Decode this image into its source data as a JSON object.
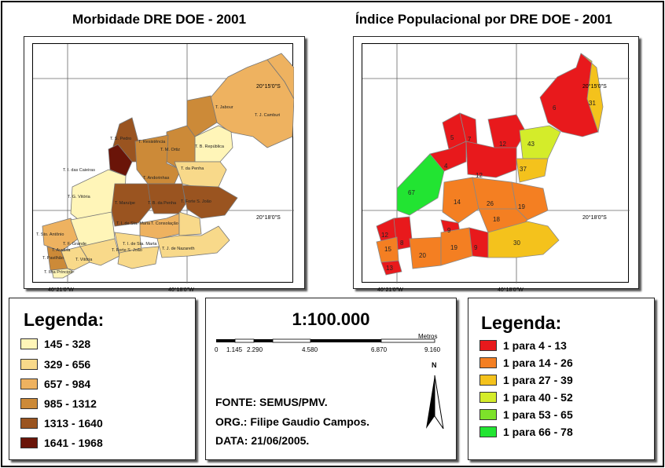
{
  "left_map": {
    "title": "Morbidade DRE DOE - 2001",
    "coord_lat_label": "20°15'0\"S",
    "coord_lat_label2": "20°18'0\"S",
    "coord_lon_label": "40°21'0\"W",
    "coord_lon_label2": "40°18'0\"W",
    "region_labels": [
      "T. Jabour",
      "T. J. Camburi",
      "T. S. Pedro",
      "T. Resistência",
      "T. M. Ortiz",
      "T. B. República",
      "T. I. das Caieiras",
      "T. Andorinhas",
      "T. da Penha",
      "T. G. Vitória",
      "T. Maruípe",
      "T. B. da Penha",
      "T. Forte S. João",
      "T. I. de Sta. Maria",
      "T. Consolação",
      "T. Sto. Antônio",
      "T. F. Grande",
      "T. Avelina",
      "T. Vitória",
      "T. I. de Sta. Marta",
      "T. Forte S. João",
      "T. J. de Nazareth",
      "T. Ilha Príncipe",
      "T. Pavilhão"
    ]
  },
  "right_map": {
    "title": "Índice Populacional por DRE DOE - 2001",
    "coord_lat_label": "20°15'0\"S",
    "coord_lat_label2": "20°18'0\"S",
    "coord_lon_label": "40°21'0\"W",
    "coord_lon_label2": "40°18'0\"W",
    "region_values": [
      "6",
      "31",
      "5",
      "7",
      "12",
      "43",
      "4",
      "12",
      "37",
      "67",
      "14",
      "26",
      "19",
      "18",
      "9",
      "12",
      "8",
      "15",
      "20",
      "19",
      "9",
      "30",
      "13"
    ]
  },
  "legend_left": {
    "title": "Legenda:",
    "items": [
      {
        "label": "145 - 328",
        "color": "#fff5b8"
      },
      {
        "label": "329 - 656",
        "color": "#f8d98a"
      },
      {
        "label": "657 - 984",
        "color": "#eeb260"
      },
      {
        "label": "985 - 1312",
        "color": "#cc8a38"
      },
      {
        "label": "1313 - 1640",
        "color": "#9a5420"
      },
      {
        "label": "1641 - 1968",
        "color": "#6a1408"
      }
    ]
  },
  "scale_panel": {
    "scale": "1:100.000",
    "units": "Metros",
    "ticks": [
      "0",
      "1.145",
      "2.290",
      "4.580",
      "6.870",
      "9.160"
    ],
    "north": "N",
    "source": "FONTE: SEMUS/PMV.",
    "org": "ORG.: Filipe Gaudio Campos.",
    "date": "DATA: 21/06/2005."
  },
  "legend_right": {
    "title": "Legenda:",
    "items": [
      {
        "label": "1 para 4 - 13",
        "color": "#e8191c"
      },
      {
        "label": "1 para 14 - 26",
        "color": "#f47f22"
      },
      {
        "label": "1 para 27 - 39",
        "color": "#f4c21c"
      },
      {
        "label": "1 para 40 - 52",
        "color": "#d4ec2a"
      },
      {
        "label": "1 para 53 - 65",
        "color": "#7de22a"
      },
      {
        "label": "1 para 66 - 78",
        "color": "#22e432"
      }
    ]
  }
}
